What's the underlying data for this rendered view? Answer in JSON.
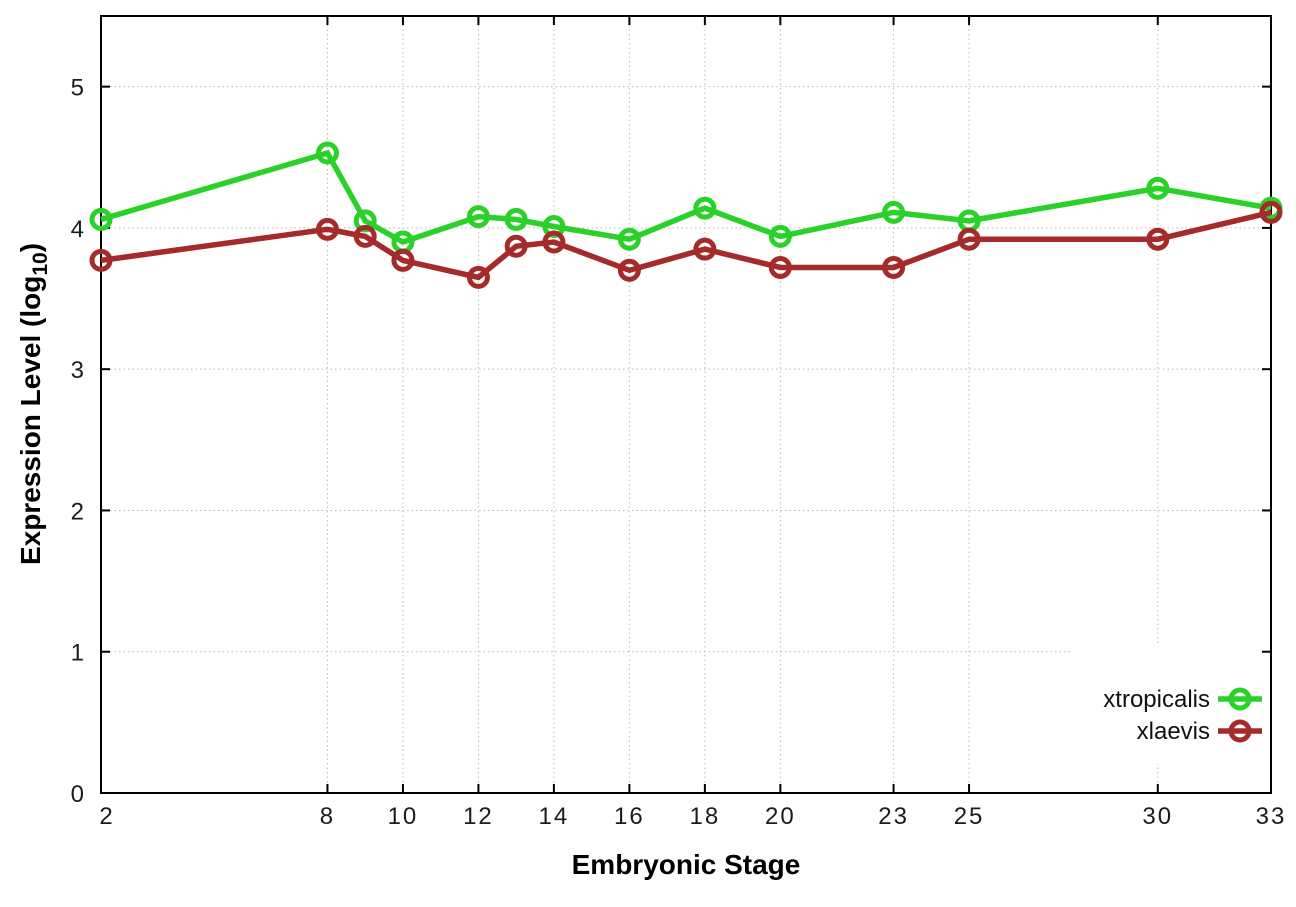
{
  "chart_data": {
    "type": "line",
    "title": "",
    "xlabel": "Embryonic Stage",
    "ylabel": "Expression Level (log10)",
    "ylabel_parts": {
      "main": "Expression Level (log",
      "sub": "10",
      "close": ")"
    },
    "xlim": [
      2,
      33
    ],
    "ylim": [
      0,
      5.5
    ],
    "x_ticks": [
      2,
      8,
      10,
      12,
      14,
      16,
      18,
      20,
      23,
      25,
      30,
      33
    ],
    "y_ticks": [
      0,
      1,
      2,
      3,
      4,
      5
    ],
    "grid": true,
    "legend_position": "inside-bottom-right",
    "x": [
      2,
      8,
      9,
      10,
      12,
      13,
      14,
      16,
      18,
      20,
      23,
      25,
      30,
      33
    ],
    "series": [
      {
        "name": "xtropicalis",
        "color": "#29d129",
        "values": [
          4.06,
          4.53,
          4.05,
          3.9,
          4.08,
          4.06,
          4.01,
          3.92,
          4.14,
          3.94,
          4.11,
          4.05,
          4.28,
          4.14
        ]
      },
      {
        "name": "xlaevis",
        "color": "#a52a2a",
        "values": [
          3.77,
          3.99,
          3.94,
          3.77,
          3.65,
          3.87,
          3.9,
          3.7,
          3.85,
          3.72,
          3.72,
          3.92,
          3.92,
          4.11
        ]
      }
    ]
  },
  "colors": {
    "grid": "#bbbbbb",
    "axis": "#000000",
    "background": "#ffffff"
  }
}
